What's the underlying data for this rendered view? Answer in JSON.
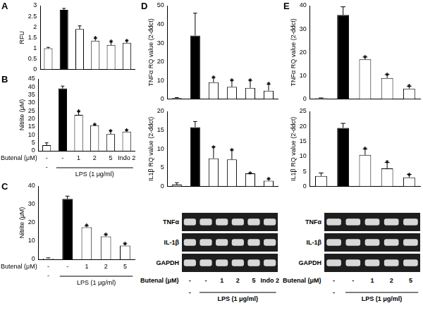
{
  "chart_data": [
    {
      "panel": "A",
      "type": "bar",
      "ylabel": "RFU",
      "categories": [
        null,
        null,
        null,
        null,
        null,
        null
      ],
      "values": [
        1.0,
        2.8,
        1.9,
        1.35,
        1.15,
        1.25
      ],
      "errors": [
        0.04,
        0.07,
        0.15,
        0.12,
        0.15,
        0.1
      ],
      "significance": [
        null,
        null,
        null,
        "*",
        "*",
        "*"
      ],
      "colors": [
        "#ffffff",
        "#000000",
        "#ffffff",
        "#ffffff",
        "#ffffff",
        "#ffffff"
      ],
      "ylim": [
        0,
        3
      ],
      "yticks": [
        0,
        0.5,
        1,
        1.5,
        2,
        2.5,
        3
      ],
      "grid": false,
      "tick_labels": "y"
    },
    {
      "panel": "B",
      "type": "bar",
      "ylabel": "Nitrite (μM)",
      "categories": [
        "-",
        "-",
        "1",
        "2",
        "5",
        "Indo 2"
      ],
      "x_label": "Butenal (μM)",
      "group_label": "LPS (1 μg/ml)",
      "group_row": [
        "-",
        null,
        null,
        null,
        null,
        null
      ],
      "values": [
        3.5,
        39,
        22.5,
        16,
        10.5,
        12
      ],
      "errors": [
        1.5,
        1.5,
        2,
        0.5,
        2,
        1
      ],
      "significance": [
        null,
        null,
        "*",
        "*",
        "*",
        "*"
      ],
      "colors": [
        "#ffffff",
        "#000000",
        "#ffffff",
        "#ffffff",
        "#ffffff",
        "#ffffff"
      ],
      "ylim": [
        0,
        45
      ],
      "yticks": [
        0,
        5,
        10,
        15,
        20,
        25,
        30,
        35,
        40,
        45
      ],
      "grid": false,
      "tick_labels": "y"
    },
    {
      "panel": "C",
      "type": "bar",
      "ylabel": "Nitrite (μM)",
      "categories": [
        "-",
        "-",
        "1",
        "2",
        "5"
      ],
      "x_label": "Butenal (μM)",
      "group_label": "LPS (1 μg/ml)",
      "group_row": [
        "-",
        null,
        null,
        null,
        null
      ],
      "values": [
        0.5,
        33,
        17.5,
        12.5,
        7.5
      ],
      "errors": [
        0.3,
        1.5,
        0.8,
        1,
        1
      ],
      "significance": [
        null,
        null,
        "*",
        "*",
        "*"
      ],
      "colors": [
        "#ffffff",
        "#000000",
        "#ffffff",
        "#ffffff",
        "#ffffff"
      ],
      "ylim": [
        0,
        40
      ],
      "yticks": [
        0,
        10,
        20,
        30,
        40
      ],
      "grid": false,
      "tick_labels": "y"
    },
    {
      "panel": "D",
      "type": "bar",
      "ylabel": "TNFα RQ value (2-ddct)",
      "categories": [
        null,
        null,
        null,
        null,
        null,
        null
      ],
      "values": [
        0.5,
        34,
        9,
        6.5,
        6,
        4.5
      ],
      "errors": [
        0.3,
        12,
        2.5,
        3.5,
        4,
        3.5
      ],
      "significance": [
        null,
        null,
        "*",
        "*",
        "*",
        "*"
      ],
      "colors": [
        "#ffffff",
        "#000000",
        "#ffffff",
        "#ffffff",
        "#ffffff",
        "#ffffff"
      ],
      "ylim": [
        0,
        50
      ],
      "yticks": [
        0,
        10,
        20,
        30,
        40,
        50
      ],
      "grid": false,
      "tick_labels": "y"
    },
    {
      "type": "bar",
      "ylabel": "IL1β RQ value (2-ddct)",
      "categories": [
        null,
        null,
        null,
        null,
        null,
        null
      ],
      "values": [
        0.5,
        15.8,
        7.5,
        7.2,
        3.5,
        1.5
      ],
      "errors": [
        0.5,
        1.5,
        3,
        2.5,
        0,
        0.5
      ],
      "significance": [
        null,
        null,
        "*",
        "*",
        "*",
        "*"
      ],
      "colors": [
        "#ffffff",
        "#000000",
        "#ffffff",
        "#ffffff",
        "#ffffff",
        "#ffffff"
      ],
      "ylim": [
        0,
        20
      ],
      "yticks": [
        0,
        5,
        10,
        15,
        20
      ],
      "grid": false,
      "tick_labels": "y"
    },
    {
      "panel": "E",
      "type": "bar",
      "ylabel": "TNFα RQ value (2-ddct)",
      "categories": [
        null,
        null,
        null,
        null,
        null
      ],
      "values": [
        0.3,
        36,
        17,
        9,
        4.5
      ],
      "errors": [
        0.2,
        3.5,
        1,
        1.5,
        1
      ],
      "significance": [
        null,
        null,
        "*",
        "*",
        "*"
      ],
      "colors": [
        "#ffffff",
        "#000000",
        "#ffffff",
        "#ffffff",
        "#ffffff"
      ],
      "ylim": [
        0,
        40
      ],
      "yticks": [
        0,
        10,
        20,
        30,
        40
      ],
      "grid": false,
      "tick_labels": "y"
    },
    {
      "type": "bar",
      "ylabel": "IL1β RQ value (2-ddct)",
      "categories": [
        null,
        null,
        null,
        null,
        null
      ],
      "values": [
        3.5,
        19.5,
        10.5,
        6,
        3
      ],
      "errors": [
        1,
        1.5,
        2,
        2,
        1
      ],
      "significance": [
        null,
        null,
        "*",
        "*",
        "*"
      ],
      "colors": [
        "#ffffff",
        "#000000",
        "#ffffff",
        "#ffffff",
        "#ffffff"
      ],
      "ylim": [
        0,
        25
      ],
      "yticks": [
        0,
        5,
        10,
        15,
        20,
        25
      ],
      "grid": false,
      "tick_labels": "y"
    }
  ],
  "gels": [
    {
      "rows": [
        "TNFα",
        "IL-1β",
        "GAPDH"
      ],
      "categories": [
        "-",
        "-",
        "1",
        "2",
        "5",
        "Indo 2"
      ],
      "x_label": "Butenal (μM)",
      "group_label": "LPS (1 μg/ml)",
      "group_row": [
        "-",
        null,
        null,
        null,
        null,
        null
      ]
    },
    {
      "rows": [
        "TNFα",
        "IL-1β",
        "GAPDH"
      ],
      "categories": [
        "-",
        "-",
        "1",
        "2",
        "5"
      ],
      "x_label": "Butenal (μM)",
      "group_label": "LPS (1 μg/ml)",
      "group_row": [
        "-",
        null,
        null,
        null,
        null
      ]
    }
  ]
}
